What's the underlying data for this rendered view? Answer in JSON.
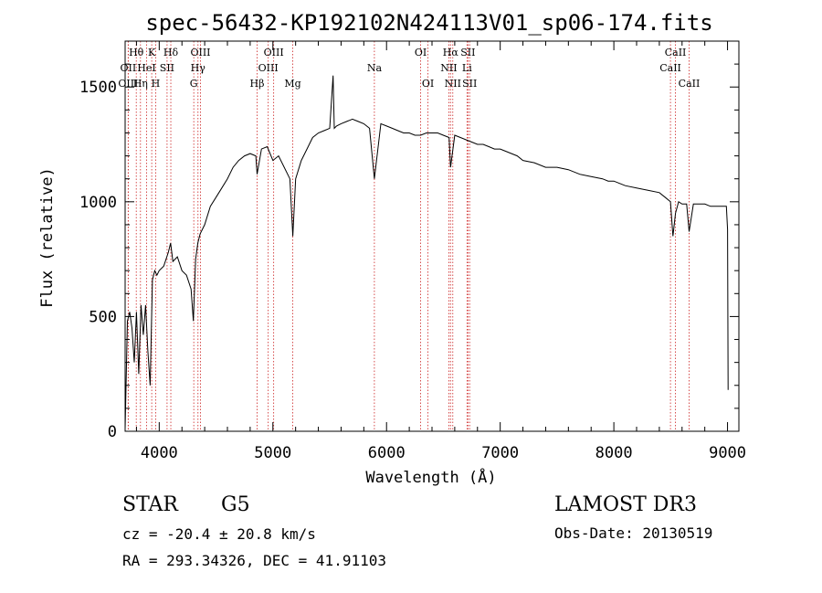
{
  "chart_data": {
    "type": "line",
    "title": "spec-56432-KP192102N424113V01_sp06-174.fits",
    "xlabel": "Wavelength (Å)",
    "ylabel": "Flux (relative)",
    "xlim": [
      3700,
      9100
    ],
    "ylim": [
      0,
      1700
    ],
    "xticks": [
      4000,
      5000,
      6000,
      7000,
      8000,
      9000
    ],
    "yticks": [
      0,
      500,
      1000,
      1500
    ],
    "series": [
      {
        "name": "flux",
        "x": [
          3700,
          3720,
          3740,
          3760,
          3780,
          3800,
          3820,
          3840,
          3860,
          3880,
          3900,
          3920,
          3940,
          3960,
          3980,
          4000,
          4040,
          4080,
          4100,
          4120,
          4160,
          4200,
          4240,
          4280,
          4300,
          4320,
          4340,
          4360,
          4400,
          4450,
          4500,
          4550,
          4600,
          4650,
          4700,
          4750,
          4800,
          4850,
          4861,
          4900,
          4950,
          5000,
          5050,
          5100,
          5150,
          5175,
          5200,
          5250,
          5300,
          5350,
          5400,
          5450,
          5500,
          5530,
          5540,
          5560,
          5600,
          5650,
          5700,
          5750,
          5800,
          5850,
          5893,
          5950,
          6000,
          6050,
          6100,
          6150,
          6200,
          6250,
          6300,
          6350,
          6400,
          6450,
          6500,
          6550,
          6563,
          6600,
          6650,
          6700,
          6750,
          6800,
          6850,
          6900,
          6950,
          7000,
          7050,
          7100,
          7150,
          7200,
          7300,
          7400,
          7500,
          7600,
          7700,
          7800,
          7900,
          7950,
          8000,
          8050,
          8100,
          8200,
          8300,
          8400,
          8450,
          8498,
          8520,
          8542,
          8570,
          8600,
          8640,
          8662,
          8700,
          8750,
          8800,
          8850,
          8900,
          8950,
          8990,
          9000,
          9005
        ],
        "values": [
          10,
          480,
          520,
          450,
          300,
          520,
          250,
          550,
          420,
          550,
          350,
          200,
          660,
          700,
          680,
          700,
          720,
          780,
          820,
          740,
          760,
          700,
          680,
          620,
          480,
          750,
          820,
          860,
          900,
          980,
          1020,
          1060,
          1100,
          1150,
          1180,
          1200,
          1210,
          1200,
          1120,
          1230,
          1240,
          1180,
          1200,
          1150,
          1100,
          850,
          1100,
          1180,
          1230,
          1280,
          1300,
          1310,
          1320,
          1550,
          1320,
          1330,
          1340,
          1350,
          1360,
          1350,
          1340,
          1320,
          1100,
          1340,
          1330,
          1320,
          1310,
          1300,
          1300,
          1290,
          1290,
          1300,
          1300,
          1300,
          1290,
          1280,
          1150,
          1290,
          1280,
          1270,
          1260,
          1250,
          1250,
          1240,
          1230,
          1230,
          1220,
          1210,
          1200,
          1180,
          1170,
          1150,
          1150,
          1140,
          1120,
          1110,
          1100,
          1090,
          1090,
          1080,
          1070,
          1060,
          1050,
          1040,
          1020,
          1000,
          850,
          950,
          1000,
          990,
          990,
          870,
          990,
          990,
          990,
          980,
          980,
          980,
          980,
          880,
          180
        ]
      }
    ],
    "lines": [
      {
        "label": "Hθ",
        "x": 3798,
        "row": 1
      },
      {
        "label": "OII",
        "x": 3727,
        "row": 2
      },
      {
        "label": "OIII",
        "x": 3727,
        "row": 3
      },
      {
        "label": "K",
        "x": 3934,
        "row": 1
      },
      {
        "label": "HeI",
        "x": 3889,
        "row": 2
      },
      {
        "label": "Hη",
        "x": 3835,
        "row": 3
      },
      {
        "label": "H",
        "x": 3969,
        "row": 3
      },
      {
        "label": "SII",
        "x": 4069,
        "row": 2
      },
      {
        "label": "Hδ",
        "x": 4102,
        "row": 1
      },
      {
        "label": "OIII",
        "x": 4363,
        "row": 1
      },
      {
        "label": "Hγ",
        "x": 4341,
        "row": 2
      },
      {
        "label": "G",
        "x": 4304,
        "row": 3
      },
      {
        "label": "OIII",
        "x": 5007,
        "row": 1
      },
      {
        "label": "OIII",
        "x": 4959,
        "row": 2
      },
      {
        "label": "Hβ",
        "x": 4861,
        "row": 3
      },
      {
        "label": "Mg",
        "x": 5175,
        "row": 3
      },
      {
        "label": "Na",
        "x": 5893,
        "row": 2
      },
      {
        "label": "OI",
        "x": 6300,
        "row": 1
      },
      {
        "label": "OI",
        "x": 6364,
        "row": 3
      },
      {
        "label": "Hα",
        "x": 6563,
        "row": 1
      },
      {
        "label": "SII",
        "x": 6716,
        "row": 1
      },
      {
        "label": "NII",
        "x": 6548,
        "row": 2
      },
      {
        "label": "Li",
        "x": 6708,
        "row": 2
      },
      {
        "label": "NII",
        "x": 6583,
        "row": 3
      },
      {
        "label": "SII",
        "x": 6731,
        "row": 3
      },
      {
        "label": "CaII",
        "x": 8542,
        "row": 1
      },
      {
        "label": "CaII",
        "x": 8498,
        "row": 2
      },
      {
        "label": "CaII",
        "x": 8662,
        "row": 3
      }
    ]
  },
  "info": {
    "object_class": "STAR",
    "subclass": "G5",
    "survey": "LAMOST DR3",
    "cz": "cz = -20.4 ± 20.8 km/s",
    "obs_date": "Obs-Date: 20130519",
    "coords": "RA = 293.34326, DEC =  41.91103"
  },
  "colors": {
    "line_marker": "#cc2222",
    "spectrum": "#000000"
  }
}
